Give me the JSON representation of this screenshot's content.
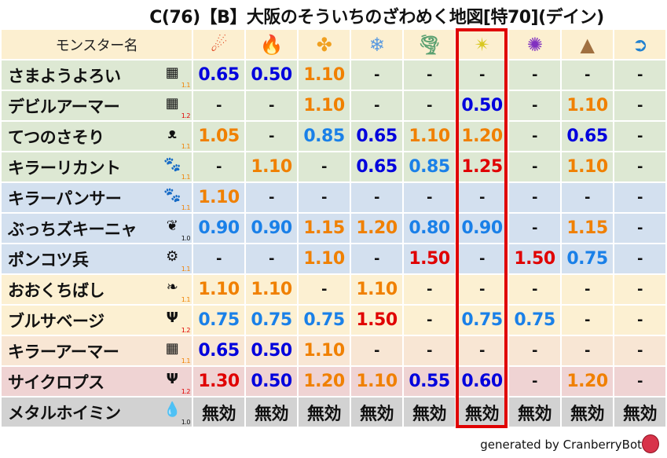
{
  "title": "C(76)【B】大阪のそういちのざわめく地図[特70](デイン)",
  "header": {
    "name_col": "モンスター名",
    "elements": [
      {
        "icon": "fire-ball-icon",
        "glyph": "☄",
        "color": "#e0401a"
      },
      {
        "icon": "flame-icon",
        "glyph": "🔥",
        "color": "#f06010"
      },
      {
        "icon": "explosion-icon",
        "glyph": "✤",
        "color": "#f0a020"
      },
      {
        "icon": "ice-icon",
        "glyph": "❄",
        "color": "#5a9ae0"
      },
      {
        "icon": "wind-icon",
        "glyph": "🌪",
        "color": "#5aa070"
      },
      {
        "icon": "lightning-icon",
        "glyph": "✴",
        "color": "#d8c820"
      },
      {
        "icon": "darkness-icon",
        "glyph": "✺",
        "color": "#8030c0"
      },
      {
        "icon": "earth-icon",
        "glyph": "▲",
        "color": "#a07040"
      },
      {
        "icon": "water-icon",
        "glyph": "➲",
        "color": "#2080d0"
      }
    ]
  },
  "highlight_column": 5,
  "colors": {
    "weak_strong": "#0000dd",
    "weak": "#1a80e8",
    "up": "#f08000",
    "up_strong": "#e00000",
    "highlight": "#e00000"
  },
  "rows": [
    {
      "name": "さまようよろい",
      "family": "material-icon",
      "glyph": "▦",
      "sub": "1.1",
      "subcolor": "#f08000",
      "bg": "g",
      "values": [
        "0.65",
        "0.50",
        "1.10",
        "-",
        "-",
        "-",
        "-",
        "-",
        "-"
      ]
    },
    {
      "name": "デビルアーマー",
      "family": "material-icon",
      "glyph": "▦",
      "sub": "1.2",
      "subcolor": "#e00000",
      "bg": "g",
      "values": [
        "-",
        "-",
        "1.10",
        "-",
        "-",
        "0.50",
        "-",
        "1.10",
        "-"
      ]
    },
    {
      "name": "てつのさそり",
      "family": "insect-icon",
      "glyph": "ᴥ",
      "sub": "1.1",
      "subcolor": "#f08000",
      "bg": "g",
      "values": [
        "1.05",
        "-",
        "0.85",
        "0.65",
        "1.10",
        "1.20",
        "-",
        "0.65",
        "-"
      ]
    },
    {
      "name": "キラーリカント",
      "family": "beast-icon",
      "glyph": "🐾",
      "sub": "1.1",
      "subcolor": "#f08000",
      "bg": "g",
      "values": [
        "-",
        "1.10",
        "-",
        "0.65",
        "0.85",
        "1.25",
        "-",
        "1.10",
        "-"
      ]
    },
    {
      "name": "キラーパンサー",
      "family": "beast-icon",
      "glyph": "🐾",
      "sub": "1.1",
      "subcolor": "#f08000",
      "bg": "b",
      "values": [
        "1.10",
        "-",
        "-",
        "-",
        "-",
        "-",
        "-",
        "-",
        "-"
      ]
    },
    {
      "name": "ぶっちズキーニャ",
      "family": "nature-icon",
      "glyph": "❦",
      "sub": "1.0",
      "subcolor": "#111111",
      "bg": "b",
      "values": [
        "0.90",
        "0.90",
        "1.15",
        "1.20",
        "0.80",
        "0.90",
        "-",
        "1.15",
        "-"
      ]
    },
    {
      "name": "ポンコツ兵",
      "family": "machine-icon",
      "glyph": "⚙",
      "sub": "1.1",
      "subcolor": "#f08000",
      "bg": "b",
      "values": [
        "-",
        "-",
        "1.10",
        "-",
        "1.50",
        "-",
        "1.50",
        "0.75",
        "-"
      ]
    },
    {
      "name": "おおくちばし",
      "family": "bird-icon",
      "glyph": "❧",
      "sub": "1.1",
      "subcolor": "#f08000",
      "bg": "y",
      "values": [
        "1.10",
        "1.10",
        "-",
        "1.10",
        "-",
        "-",
        "-",
        "-",
        "-"
      ]
    },
    {
      "name": "ブルサベージ",
      "family": "demon-icon",
      "glyph": "Ψ",
      "sub": "1.2",
      "subcolor": "#e00000",
      "bg": "y",
      "values": [
        "0.75",
        "0.75",
        "0.75",
        "1.50",
        "-",
        "0.75",
        "0.75",
        "-",
        "-"
      ]
    },
    {
      "name": "キラーアーマー",
      "family": "material-icon",
      "glyph": "▦",
      "sub": "1.1",
      "subcolor": "#f08000",
      "bg": "p",
      "values": [
        "0.65",
        "0.50",
        "1.10",
        "-",
        "-",
        "-",
        "-",
        "-",
        "-"
      ]
    },
    {
      "name": "サイクロプス",
      "family": "demon-icon",
      "glyph": "Ψ",
      "sub": "1.2",
      "subcolor": "#e00000",
      "bg": "r",
      "values": [
        "1.30",
        "0.50",
        "1.20",
        "1.10",
        "0.55",
        "0.60",
        "-",
        "1.20",
        "-"
      ]
    },
    {
      "name": "メタルホイミン",
      "family": "slime-icon",
      "glyph": "💧",
      "sub": "1.0",
      "subcolor": "#111111",
      "bg": "k",
      "values": [
        "無効",
        "無効",
        "無効",
        "無効",
        "無効",
        "無効",
        "無効",
        "無効",
        "無効"
      ]
    }
  ],
  "footer": "generated by CranberryBot"
}
